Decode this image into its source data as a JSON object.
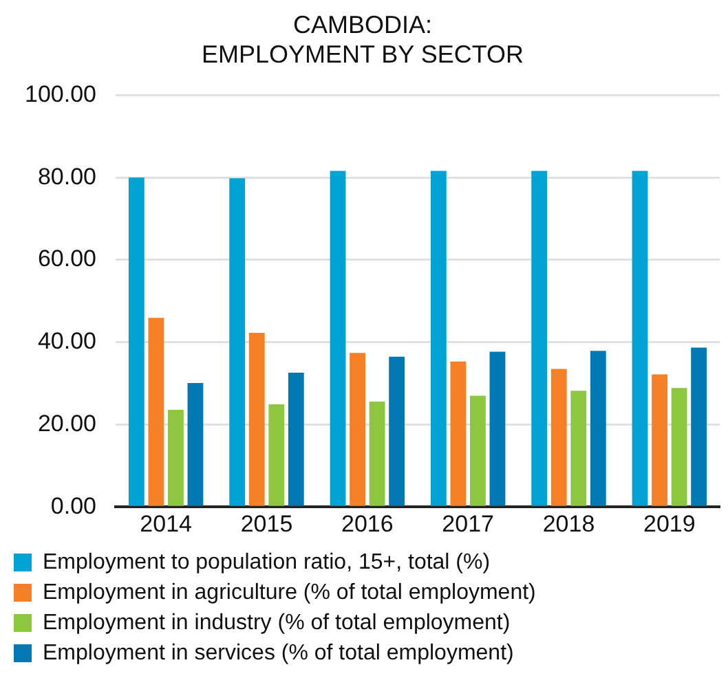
{
  "chart_data": {
    "type": "bar",
    "title": "CAMBODIA:\nEMPLOYMENT BY SECTOR",
    "categories": [
      "2014",
      "2015",
      "2016",
      "2017",
      "2018",
      "2019"
    ],
    "series": [
      {
        "name": "Employment to population ratio, 15+, total (%)",
        "color": "#00a3d3",
        "values": [
          80.0,
          79.8,
          81.6,
          81.6,
          81.6,
          81.6
        ]
      },
      {
        "name": "Employment in agriculture (% of total employment)",
        "color": "#f58025",
        "values": [
          45.9,
          42.3,
          37.4,
          35.3,
          33.5,
          32.2
        ]
      },
      {
        "name": "Employment in industry (% of total employment)",
        "color": "#8dc63f",
        "values": [
          23.6,
          24.9,
          25.6,
          27.0,
          28.2,
          28.9
        ]
      },
      {
        "name": "Employment in services (% of total employment)",
        "color": "#0079b5",
        "values": [
          30.1,
          32.6,
          36.5,
          37.7,
          37.9,
          38.7
        ]
      }
    ],
    "ylim": [
      0,
      100
    ],
    "yticks": [
      {
        "value": 0,
        "label": "0.00"
      },
      {
        "value": 20,
        "label": "20.00"
      },
      {
        "value": 40,
        "label": "40.00"
      },
      {
        "value": 60,
        "label": "60.00"
      },
      {
        "value": 80,
        "label": "80.00"
      },
      {
        "value": 100,
        "label": "100.00"
      }
    ],
    "grid": "y",
    "legend": "bottom"
  }
}
